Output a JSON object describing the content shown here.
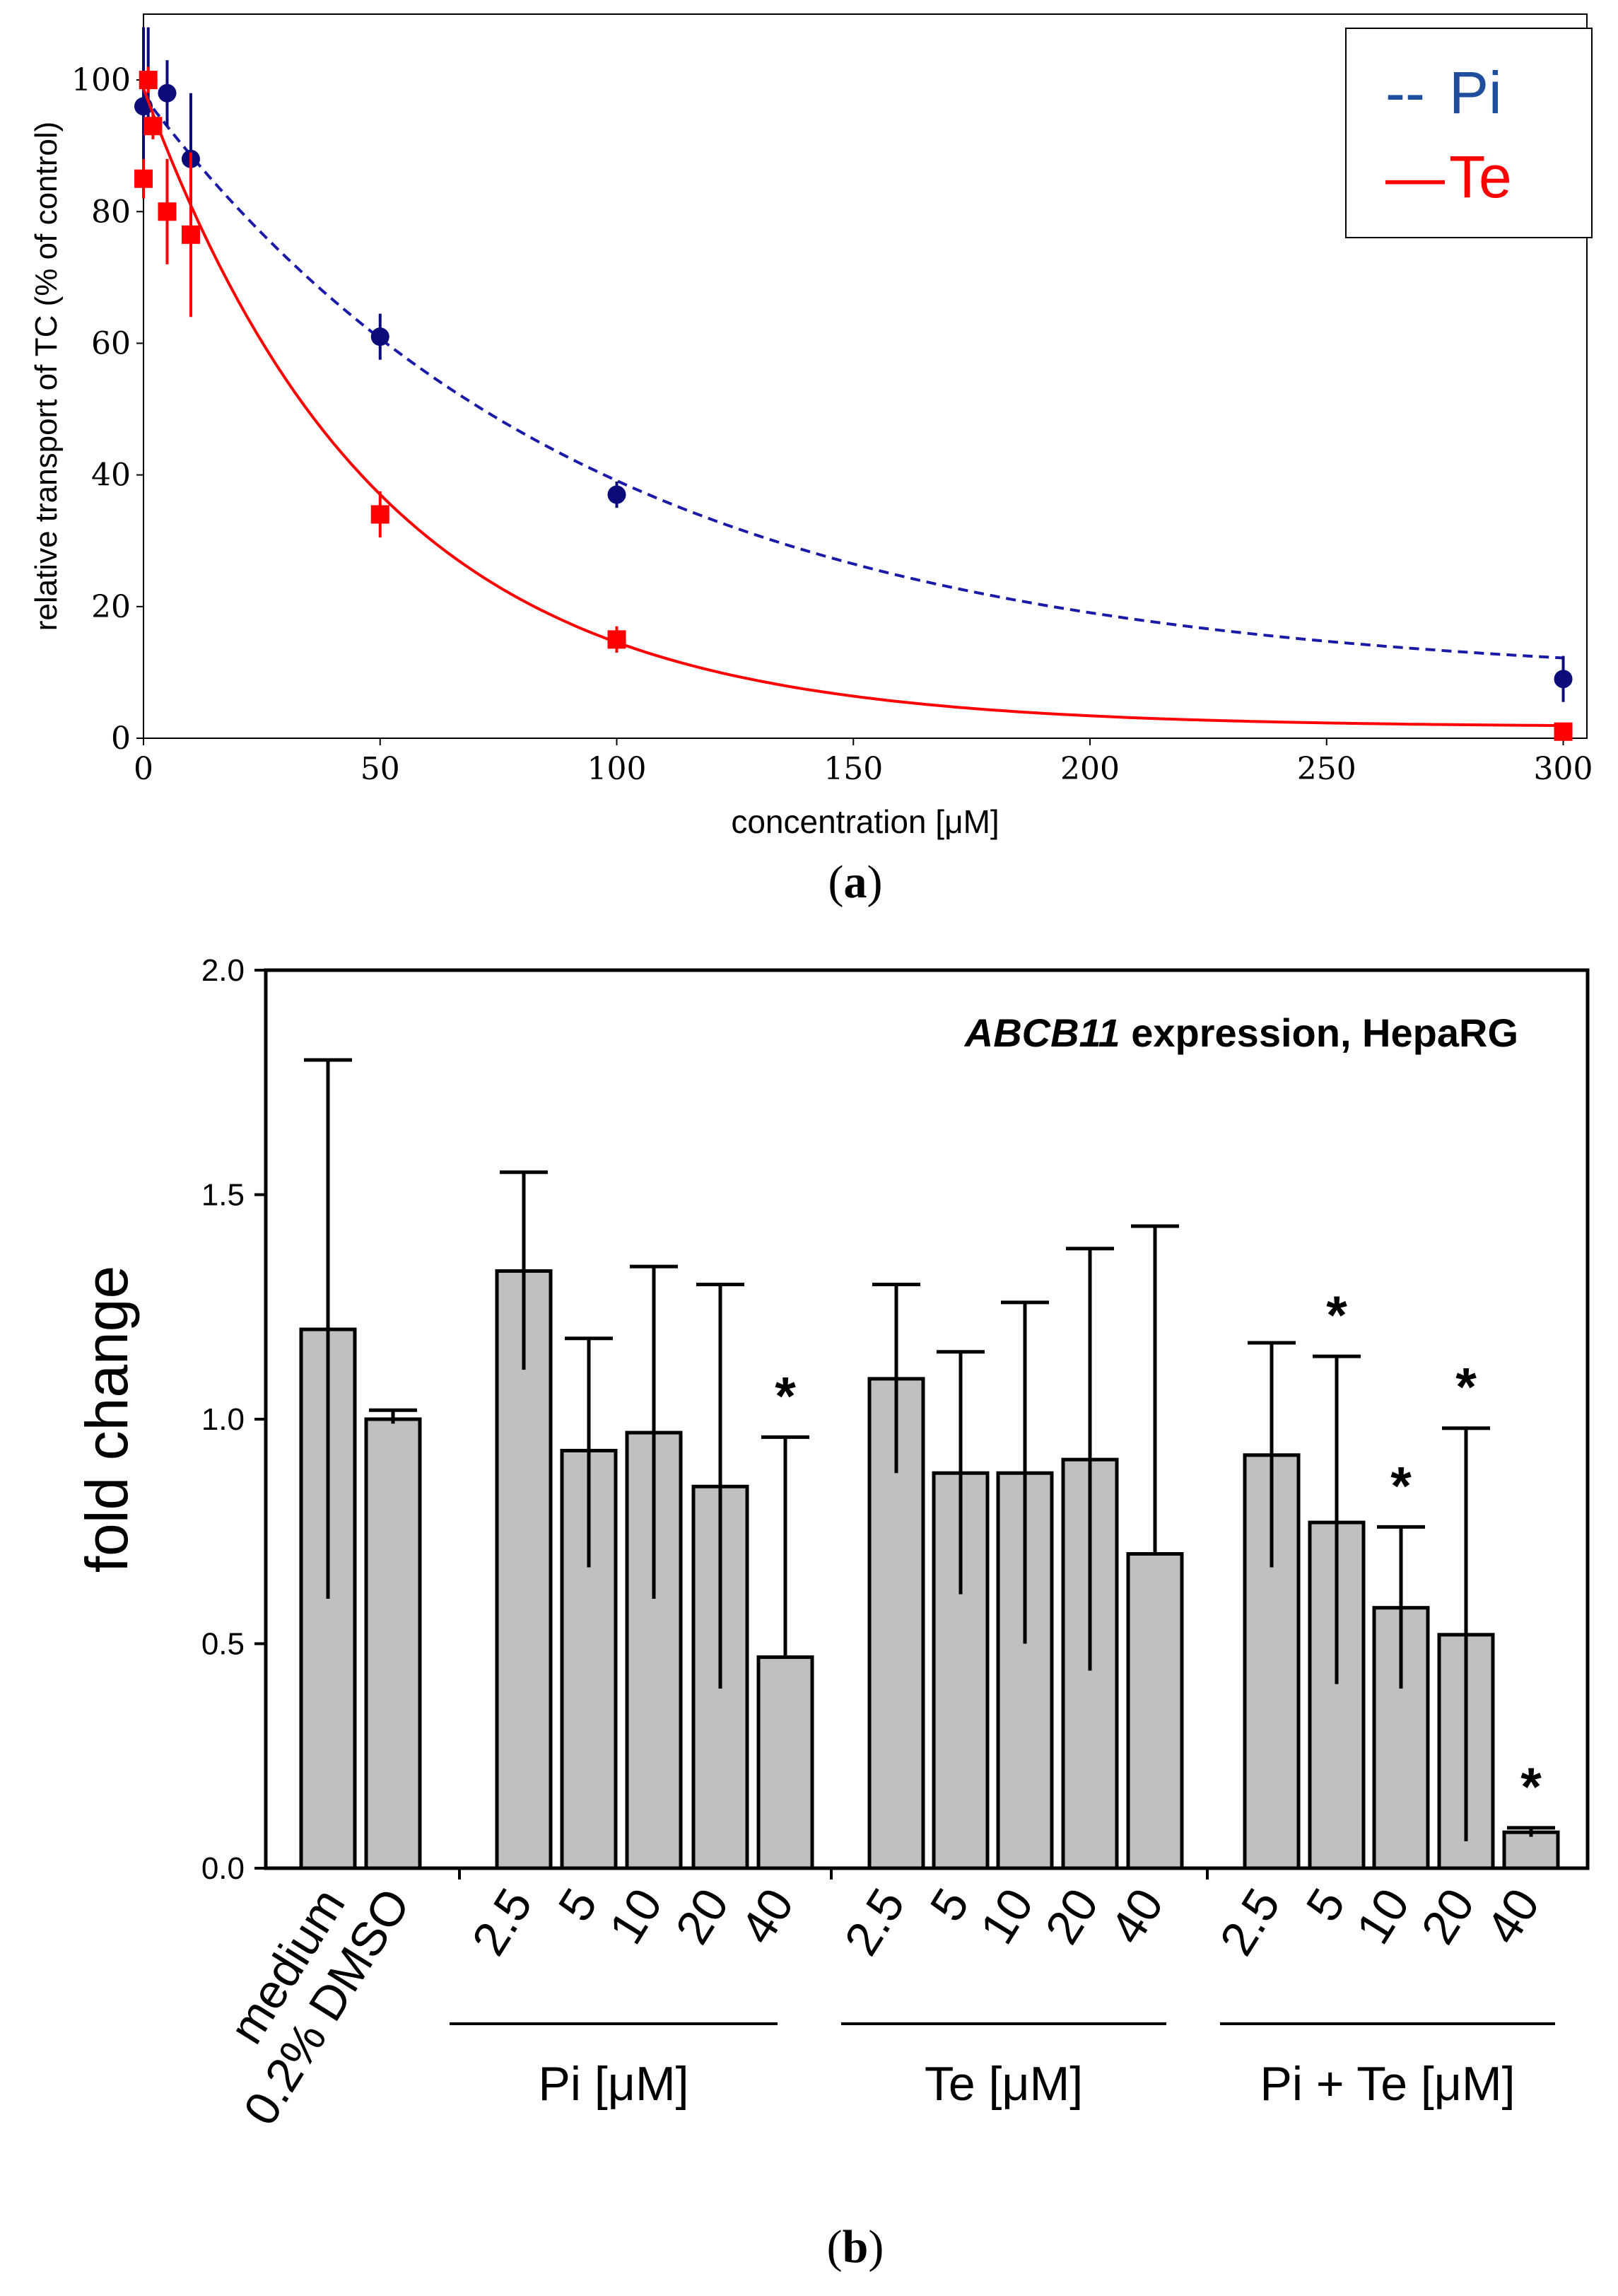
{
  "figure": {
    "panel_a_label": "a",
    "panel_b_label": "b"
  },
  "chart_data": [
    {
      "panel": "a",
      "type": "line",
      "xlabel": "concentration [μM]",
      "ylabel": "relative transport of TC (% of control)",
      "xlim": [
        0,
        305
      ],
      "ylim": [
        0,
        110
      ],
      "xticks": [
        0,
        50,
        100,
        150,
        200,
        250,
        300
      ],
      "yticks": [
        0,
        20,
        40,
        60,
        80,
        100
      ],
      "legend": {
        "position": "top-right",
        "entries": [
          {
            "marker": "--",
            "label": "Pi",
            "color": "#1f4e9c"
          },
          {
            "marker": "—",
            "label": "Te",
            "color": "#ff0000"
          }
        ]
      },
      "series": [
        {
          "name": "Pi",
          "color": "#0b0b7a",
          "line_color": "#1a1aa8",
          "line_style": "dashed",
          "marker": "circle",
          "points": [
            {
              "x": 0,
              "y": 96,
              "err": 12
            },
            {
              "x": 1,
              "y": 100,
              "err": 8
            },
            {
              "x": 5,
              "y": 98,
              "err": 5
            },
            {
              "x": 10,
              "y": 88,
              "err": 10
            },
            {
              "x": 50,
              "y": 61,
              "err": 3.5
            },
            {
              "x": 100,
              "y": 37,
              "err": 2
            },
            {
              "x": 300,
              "y": 9,
              "err": 3.5
            }
          ],
          "fit": {
            "baseline": 8.6,
            "amplitude": 89.0,
            "rate": 0.0107
          }
        },
        {
          "name": "Te",
          "color": "#ff0000",
          "line_color": "#ff0000",
          "line_style": "solid",
          "marker": "square",
          "points": [
            {
              "x": 0,
              "y": 85,
              "err": 3
            },
            {
              "x": 1,
              "y": 100,
              "err": 2
            },
            {
              "x": 2,
              "y": 93,
              "err": 2
            },
            {
              "x": 5,
              "y": 80,
              "err": 8
            },
            {
              "x": 10,
              "y": 76.5,
              "err": 12.5
            },
            {
              "x": 50,
              "y": 34,
              "err": 3.5
            },
            {
              "x": 100,
              "y": 15,
              "err": 2
            },
            {
              "x": 300,
              "y": 1,
              "err": 0.5
            }
          ],
          "fit": {
            "baseline": 1.7,
            "amplitude": 97.0,
            "rate": 0.0202
          }
        }
      ]
    },
    {
      "panel": "b",
      "type": "bar",
      "title_italic": "ABCB11",
      "title_rest": " expression, HepaRG",
      "ylabel": "fold change",
      "ylim": [
        0,
        2.0
      ],
      "yticks": [
        "0.0",
        "0.5",
        "1.0",
        "1.5",
        "2.0"
      ],
      "bar_color": "#c0c0c0",
      "group_labels": [
        "Pi [μM]",
        "Te [μM]",
        "Pi + Te [μM]"
      ],
      "control_labels": [
        "medium",
        "0.2% DMSO"
      ],
      "bars": [
        {
          "label": "medium",
          "group": 0,
          "value": 1.2,
          "err_high": 1.8,
          "err_low": 0.6,
          "star": false
        },
        {
          "label": "0.2% DMSO",
          "group": 0,
          "value": 1.0,
          "err_high": 1.02,
          "err_low": 0.99,
          "star": false
        },
        {
          "label": "2.5",
          "group": 1,
          "value": 1.33,
          "err_high": 1.55,
          "err_low": 1.11,
          "star": false
        },
        {
          "label": "5",
          "group": 1,
          "value": 0.93,
          "err_high": 1.18,
          "err_low": 0.67,
          "star": false
        },
        {
          "label": "10",
          "group": 1,
          "value": 0.97,
          "err_high": 1.34,
          "err_low": 0.6,
          "star": false
        },
        {
          "label": "20",
          "group": 1,
          "value": 0.85,
          "err_high": 1.3,
          "err_low": 0.4,
          "star": false
        },
        {
          "label": "40",
          "group": 1,
          "value": 0.47,
          "err_high": 0.96,
          "err_low": 0.47,
          "star": true
        },
        {
          "label": "2.5",
          "group": 2,
          "value": 1.09,
          "err_high": 1.3,
          "err_low": 0.88,
          "star": false
        },
        {
          "label": "5",
          "group": 2,
          "value": 0.88,
          "err_high": 1.15,
          "err_low": 0.61,
          "star": false
        },
        {
          "label": "10",
          "group": 2,
          "value": 0.88,
          "err_high": 1.26,
          "err_low": 0.5,
          "star": false
        },
        {
          "label": "20",
          "group": 2,
          "value": 0.91,
          "err_high": 1.38,
          "err_low": 0.44,
          "star": false
        },
        {
          "label": "40",
          "group": 2,
          "value": 0.7,
          "err_high": 1.43,
          "err_low": 0.7,
          "star": false
        },
        {
          "label": "2.5",
          "group": 3,
          "value": 0.92,
          "err_high": 1.17,
          "err_low": 0.67,
          "star": false
        },
        {
          "label": "5",
          "group": 3,
          "value": 0.77,
          "err_high": 1.14,
          "err_low": 0.41,
          "star": true
        },
        {
          "label": "10",
          "group": 3,
          "value": 0.58,
          "err_high": 0.76,
          "err_low": 0.4,
          "star": true
        },
        {
          "label": "20",
          "group": 3,
          "value": 0.52,
          "err_high": 0.98,
          "err_low": 0.06,
          "star": true
        },
        {
          "label": "40",
          "group": 3,
          "value": 0.08,
          "err_high": 0.09,
          "err_low": 0.07,
          "star": true
        }
      ],
      "star_symbol": "*"
    }
  ]
}
